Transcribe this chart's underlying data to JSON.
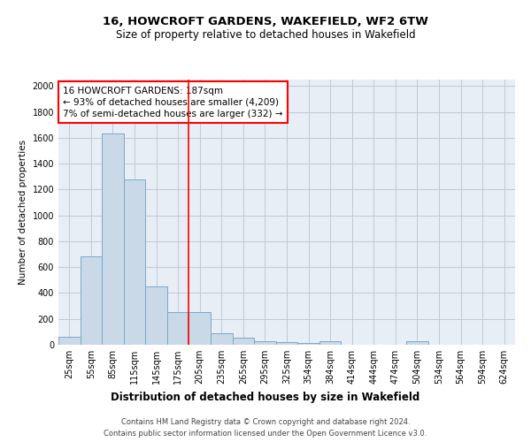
{
  "title": "16, HOWCROFT GARDENS, WAKEFIELD, WF2 6TW",
  "subtitle": "Size of property relative to detached houses in Wakefield",
  "xlabel": "Distribution of detached houses by size in Wakefield",
  "ylabel": "Number of detached properties",
  "footer1": "Contains HM Land Registry data © Crown copyright and database right 2024.",
  "footer2": "Contains public sector information licensed under the Open Government Licence v3.0.",
  "bin_labels": [
    "25sqm",
    "55sqm",
    "85sqm",
    "115sqm",
    "145sqm",
    "175sqm",
    "205sqm",
    "235sqm",
    "265sqm",
    "295sqm",
    "325sqm",
    "354sqm",
    "384sqm",
    "414sqm",
    "444sqm",
    "474sqm",
    "504sqm",
    "534sqm",
    "564sqm",
    "594sqm",
    "624sqm"
  ],
  "bar_values": [
    60,
    680,
    1630,
    1280,
    450,
    255,
    250,
    90,
    55,
    30,
    20,
    15,
    30,
    0,
    0,
    0,
    30,
    0,
    0,
    0,
    0
  ],
  "bar_color": "#c9d9e8",
  "bar_edge_color": "#7aaac8",
  "grid_color": "#c0c8d8",
  "bg_color": "#e8eef5",
  "property_line_x": 5.5,
  "property_line_color": "red",
  "annotation_line1": "16 HOWCROFT GARDENS: 187sqm",
  "annotation_line2": "← 93% of detached houses are smaller (4,209)",
  "annotation_line3": "7% of semi-detached houses are larger (332) →",
  "annotation_box_color": "red",
  "ylim": [
    0,
    2050
  ],
  "yticks": [
    0,
    200,
    400,
    600,
    800,
    1000,
    1200,
    1400,
    1600,
    1800,
    2000
  ],
  "title_fontsize": 9.5,
  "subtitle_fontsize": 8.5,
  "ylabel_fontsize": 7.5,
  "xlabel_fontsize": 8.5,
  "tick_fontsize": 7,
  "annot_fontsize": 7.5
}
